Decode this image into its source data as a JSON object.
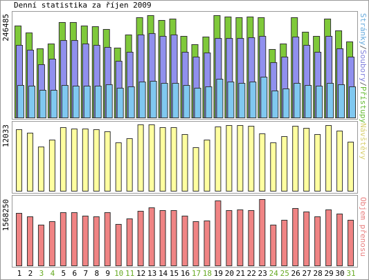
{
  "chart_data": {
    "type": "bar",
    "title": "Denní statistika za říjen 2009",
    "categories": [
      "1",
      "2",
      "3",
      "4",
      "5",
      "6",
      "7",
      "8",
      "9",
      "10",
      "11",
      "12",
      "13",
      "14",
      "15",
      "16",
      "17",
      "18",
      "19",
      "20",
      "21",
      "22",
      "23",
      "24",
      "25",
      "26",
      "27",
      "28",
      "29",
      "30",
      "31"
    ],
    "category_colors": [
      "#000000",
      "#000000",
      "#66aa22",
      "#66aa22",
      "#000000",
      "#000000",
      "#000000",
      "#000000",
      "#000000",
      "#66aa22",
      "#66aa22",
      "#000000",
      "#000000",
      "#000000",
      "#000000",
      "#000000",
      "#66aa22",
      "#66aa22",
      "#000000",
      "#000000",
      "#000000",
      "#000000",
      "#000000",
      "#66aa22",
      "#66aa22",
      "#000000",
      "#000000",
      "#000000",
      "#000000",
      "#000000",
      "#66aa22"
    ],
    "legend_separator": "/",
    "panels": [
      {
        "ylim": [
          0,
          246485
        ],
        "yticks": [
          246485
        ],
        "series": [
          {
            "name": "Stránky",
            "color": "#80c8f0",
            "text_color": "#66aadd",
            "values": [
              77200,
              75600,
              65700,
              65700,
              77200,
              75600,
              75600,
              75600,
              78900,
              70600,
              73900,
              85400,
              87100,
              82200,
              82200,
              77200,
              70600,
              73900,
              92000,
              85400,
              82200,
              85400,
              96900,
              64100,
              69000,
              82200,
              77200,
              75600,
              82200,
              78900,
              73900
            ]
          },
          {
            "name": "Soubory",
            "color": "#9090ee",
            "text_color": "#7f7fdd",
            "values": [
              172500,
              161000,
              126500,
              139700,
              184000,
              184000,
              175800,
              172500,
              167600,
              134700,
              156100,
              197200,
              200400,
              193900,
              197200,
              156100,
              144600,
              154400,
              188900,
              188900,
              188900,
              190600,
              193900,
              131400,
              144600,
              192200,
              172500,
              156100,
              193900,
              164300,
              144600
            ]
          },
          {
            "name": "Přístupy",
            "color": "#7fc93a",
            "text_color": "#66bb33",
            "values": [
              218500,
              202000,
              164300,
              175800,
              226800,
              226800,
              218500,
              216900,
              210300,
              166000,
              197200,
              238300,
              243200,
              231700,
              235000,
              193900,
              174200,
              192300,
              243200,
              239900,
              238300,
              239900,
              238300,
              162700,
              175800,
              238300,
              203800,
              193900,
              235000,
              207000,
              180700
            ]
          }
        ]
      },
      {
        "ylim": [
          0,
          12033
        ],
        "yticks": [
          12033
        ],
        "series": [
          {
            "name": "Návštěvy",
            "color": "#ffffa0",
            "text_color": "#d8d070",
            "values": [
              11155,
              10529,
              8022,
              9275,
              11532,
              11281,
              11281,
              11155,
              10780,
              8774,
              9526,
              12033,
              12033,
              11532,
              11532,
              10278,
              7897,
              9275,
              11657,
              11908,
              11908,
              11782,
              10404,
              8774,
              9902,
              11782,
              11406,
              10278,
              11908,
              10905,
              8899
            ]
          }
        ]
      },
      {
        "ylim": [
          0,
          1568250
        ],
        "yticks": [
          1568250
        ],
        "series": [
          {
            "name": "Objem přenosu",
            "color": "#f08484",
            "text_color": "#e88080",
            "values": [
              1241500,
              1159900,
              963800,
              1045500,
              1257900,
              1257900,
              1176200,
              1159900,
              1257900,
              980200,
              1110800,
              1290500,
              1372200,
              1306900,
              1306900,
              1176200,
              1045500,
              1061800,
              1535600,
              1306900,
              1323200,
              1306900,
              1568250,
              963800,
              1078200,
              1355900,
              1274200,
              1159900,
              1323200,
              1225200,
              1078200
            ]
          }
        ]
      }
    ]
  }
}
